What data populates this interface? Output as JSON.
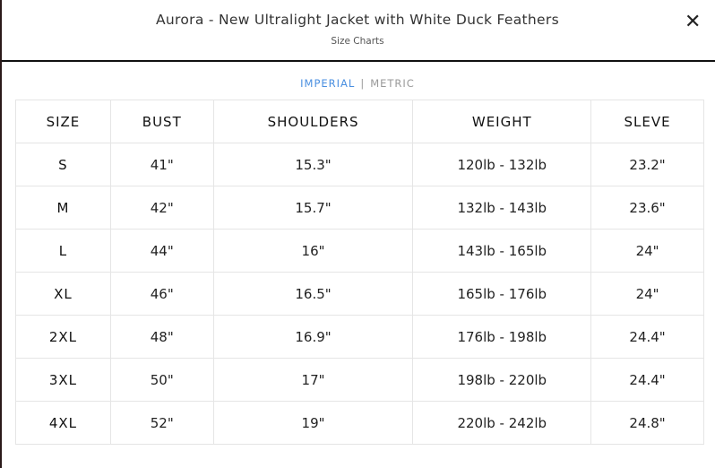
{
  "modal": {
    "title": "Aurora - New Ultralight Jacket with White Duck Feathers",
    "subtitle": "Size Charts",
    "close_icon": "close-icon"
  },
  "units": {
    "imperial": "IMPERIAL",
    "separator": "|",
    "metric": "METRIC",
    "active": "IMPERIAL",
    "active_color": "#4a8fe0"
  },
  "table": {
    "headers": [
      "SIZE",
      "BUST",
      "SHOULDERS",
      "WEIGHT",
      "SLEVE"
    ],
    "rows": [
      [
        "S",
        "41\"",
        "15.3\"",
        "120lb - 132lb",
        "23.2\""
      ],
      [
        "M",
        "42\"",
        "15.7\"",
        "132lb - 143lb",
        "23.6\""
      ],
      [
        "L",
        "44\"",
        "16\"",
        "143lb - 165lb",
        "24\""
      ],
      [
        "XL",
        "46\"",
        "16.5\"",
        "165lb - 176lb",
        "24\""
      ],
      [
        "2XL",
        "48\"",
        "16.9\"",
        "176lb - 198lb",
        "24.4\""
      ],
      [
        "3XL",
        "50\"",
        "17\"",
        "198lb - 220lb",
        "24.4\""
      ],
      [
        "4XL",
        "52\"",
        "19\"",
        "220lb - 242lb",
        "24.8\""
      ]
    ]
  }
}
